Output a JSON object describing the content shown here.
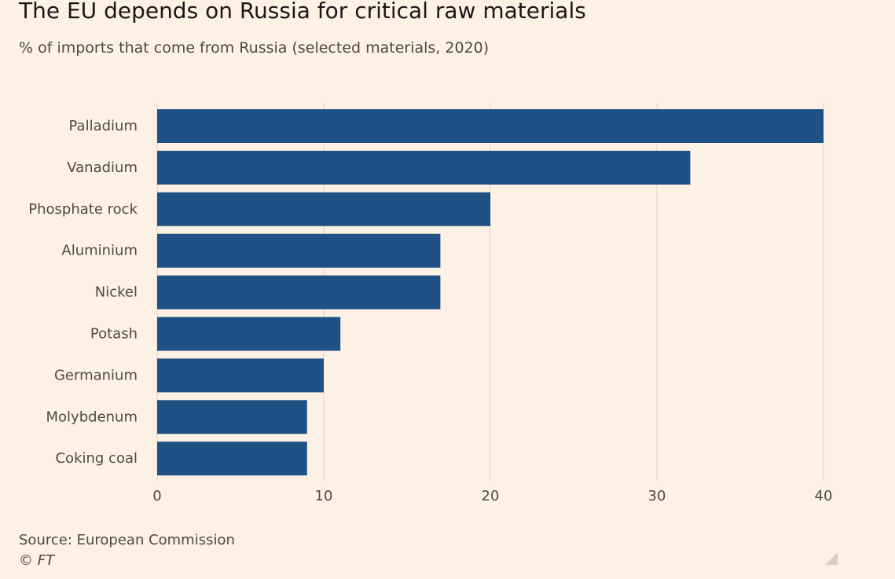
{
  "header": {
    "title": "The EU depends on Russia for critical raw materials",
    "subtitle": "% of imports that come from Russia (selected materials, 2020)"
  },
  "footer": {
    "source": "Source: European Commission",
    "credit": "© FT"
  },
  "colors": {
    "background": "#fdf1e6",
    "bar": "#1f5185",
    "gridline": "#e9dccf",
    "axis_text": "#4d4845"
  },
  "chart_data": {
    "type": "bar",
    "orientation": "horizontal",
    "title": "The EU depends on Russia for critical raw materials",
    "subtitle": "% of imports that come from Russia (selected materials, 2020)",
    "categories": [
      "Palladium",
      "Vanadium",
      "Phosphate rock",
      "Aluminium",
      "Nickel",
      "Potash",
      "Germanium",
      "Molybdenum",
      "Coking coal"
    ],
    "values": [
      40,
      32,
      20,
      17,
      17,
      11,
      10,
      9,
      9
    ],
    "xlim": [
      0,
      40
    ],
    "xticks": [
      "0",
      "10",
      "20",
      "30",
      "40"
    ],
    "xlabel": "",
    "ylabel": "",
    "grid": "vertical"
  }
}
